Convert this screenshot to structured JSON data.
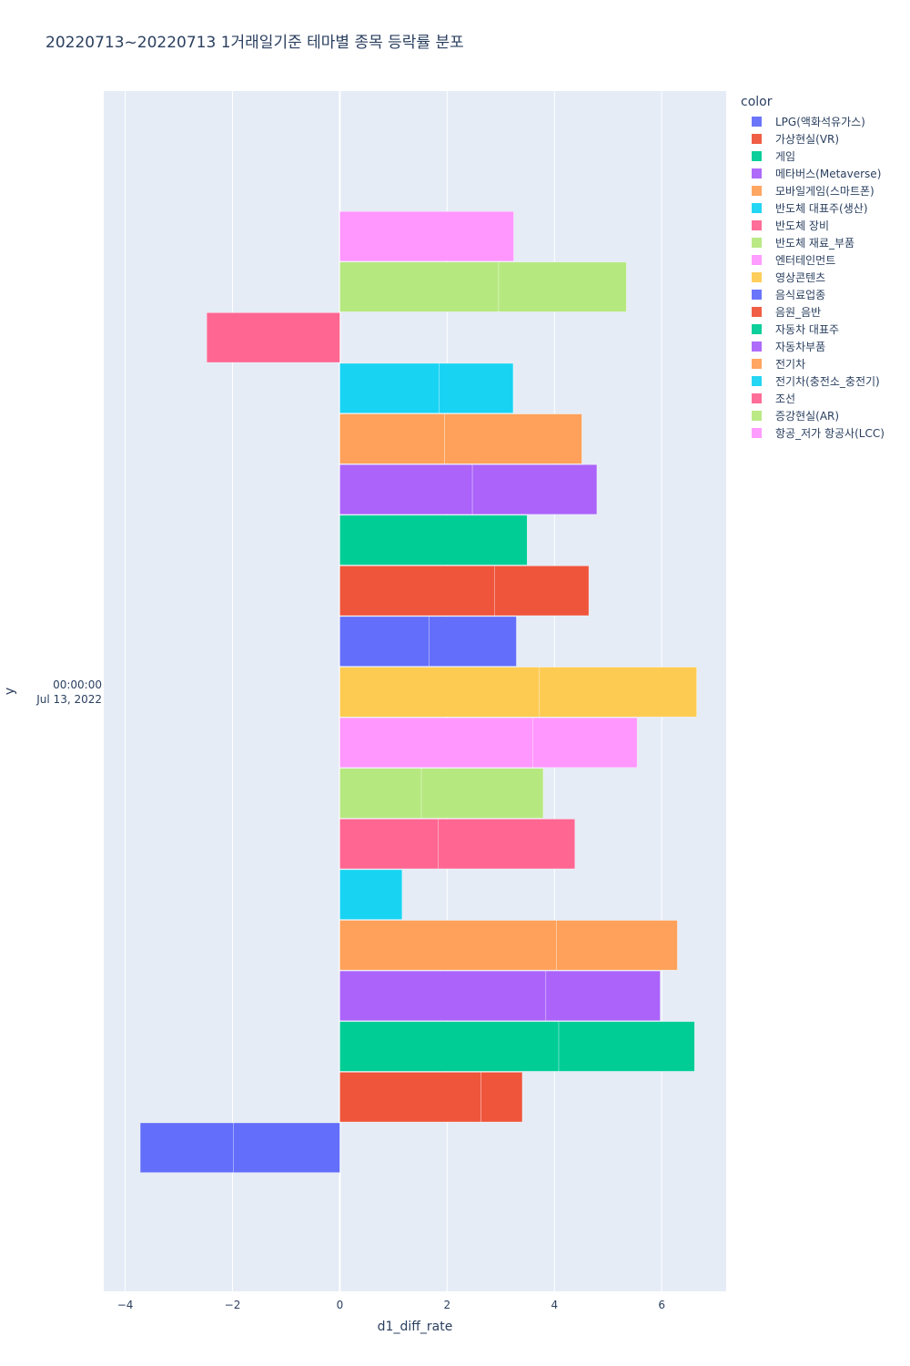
{
  "title": "20220713~20220713 1거래일기준 테마별 종목 등락률 분포",
  "chart_data": {
    "type": "bar",
    "orientation": "horizontal",
    "barmode": "group-stacked",
    "title": "20220713~20220713 1거래일기준 테마별 종목 등락률 분포",
    "xlabel": "d1_diff_rate",
    "ylabel": "y",
    "xlim": [
      -4.4,
      7.2
    ],
    "x_ticks": [
      -4,
      -2,
      0,
      2,
      4,
      6
    ],
    "x_tick_labels": [
      "−4",
      "−2",
      "0",
      "2",
      "4",
      "6"
    ],
    "y_category_lines": [
      "00:00:00",
      "Jul 13, 2022"
    ],
    "legend_title": "color",
    "legend_placement": "right",
    "grid": true,
    "series": [
      {
        "name": "LPG(액화석유가스)",
        "color": "#636efa",
        "segments": [
          -1.98,
          -1.74
        ]
      },
      {
        "name": "가상현실(VR)",
        "color": "#EF553B",
        "segments": [
          2.63,
          0.77
        ]
      },
      {
        "name": "게임",
        "color": "#00cc96",
        "segments": [
          4.08,
          2.53
        ]
      },
      {
        "name": "메타버스(Metaverse)",
        "color": "#ab63fa",
        "segments": [
          3.84,
          2.13
        ]
      },
      {
        "name": "모바일게임(스마트폰)",
        "color": "#FFA15A",
        "segments": [
          4.04,
          2.25
        ]
      },
      {
        "name": "반도체 대표주(생산)",
        "color": "#19d3f3",
        "segments": [
          1.16
        ]
      },
      {
        "name": "반도체 장비",
        "color": "#FF6692",
        "segments": [
          1.83,
          2.55
        ]
      },
      {
        "name": "반도체 재료_부품",
        "color": "#B6E880",
        "segments": [
          1.52,
          2.27
        ]
      },
      {
        "name": "엔터테인먼트",
        "color": "#FF97FF",
        "segments": [
          3.6,
          1.94
        ]
      },
      {
        "name": "영상콘텐츠",
        "color": "#FECB52",
        "segments": [
          3.72,
          2.93
        ]
      },
      {
        "name": "음식료업종",
        "color": "#636efa",
        "segments": [
          1.66,
          1.63
        ]
      },
      {
        "name": "음원_음반",
        "color": "#EF553B",
        "segments": [
          2.88,
          1.76
        ]
      },
      {
        "name": "자동차 대표주",
        "color": "#00cc96",
        "segments": [
          3.49
        ]
      },
      {
        "name": "자동차부품",
        "color": "#ab63fa",
        "segments": [
          2.47,
          2.32
        ]
      },
      {
        "name": "전기차",
        "color": "#FFA15A",
        "segments": [
          1.95,
          2.56
        ]
      },
      {
        "name": "전기차(충전소_충전기)",
        "color": "#19d3f3",
        "segments": [
          1.85,
          1.38
        ]
      },
      {
        "name": "조선",
        "color": "#FF6692",
        "segments": [
          -2.48
        ]
      },
      {
        "name": "증강현실(AR)",
        "color": "#B6E880",
        "segments": [
          2.96,
          2.38
        ]
      },
      {
        "name": "항공_저가 항공사(LCC)",
        "color": "#FF97FF",
        "segments": [
          3.24
        ]
      }
    ]
  }
}
